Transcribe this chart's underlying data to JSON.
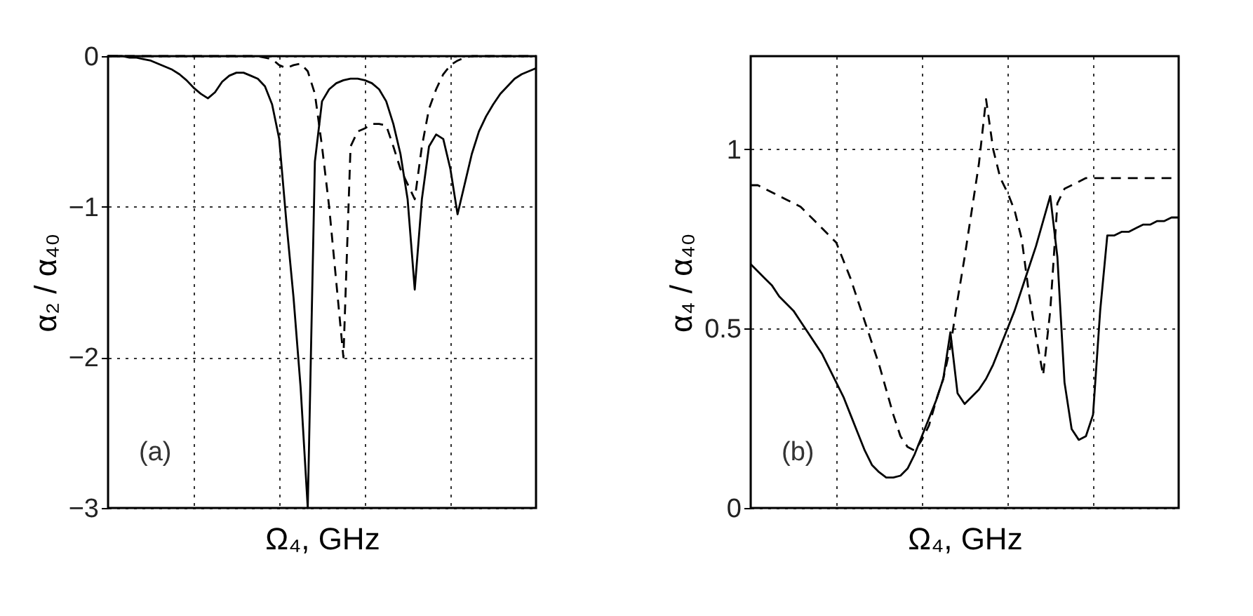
{
  "chart_data": [
    {
      "type": "line",
      "ylabel": "α₂ / α₄₀",
      "xlabel": "Ω₄, GHz",
      "categories": [
        null,
        null,
        null,
        null,
        null,
        null,
        null,
        null,
        null,
        null,
        null,
        null,
        null,
        null,
        null,
        null,
        null,
        null,
        null,
        null,
        null,
        null,
        null,
        null,
        null,
        null,
        null,
        null,
        null,
        null,
        null,
        null,
        null,
        null,
        null,
        null,
        null,
        null,
        null,
        null,
        null,
        null,
        null,
        null,
        null,
        null,
        null,
        null,
        null,
        null,
        null,
        null,
        null,
        null,
        null,
        null,
        null,
        null,
        null,
        null,
        null
      ],
      "ylim": [
        -3,
        0
      ],
      "yticks": [
        0,
        -1,
        -2,
        -3
      ],
      "grid": true,
      "tick_labels": "y",
      "annotations": [
        "(a)"
      ],
      "series": [
        {
          "color": "#000000",
          "line_style": "solid",
          "values": [
            0,
            0,
            0,
            -0.01,
            -0.01,
            -0.02,
            -0.03,
            -0.05,
            -0.07,
            -0.09,
            -0.12,
            -0.16,
            -0.21,
            -0.25,
            -0.28,
            -0.24,
            -0.17,
            -0.13,
            -0.11,
            -0.11,
            -0.13,
            -0.15,
            -0.2,
            -0.32,
            -0.55,
            -1.1,
            -1.6,
            -2.2,
            -3,
            -0.7,
            -0.3,
            -0.22,
            -0.18,
            -0.16,
            -0.15,
            -0.15,
            -0.16,
            -0.18,
            -0.22,
            -0.3,
            -0.45,
            -0.65,
            -0.95,
            -1.55,
            -0.95,
            -0.6,
            -0.52,
            -0.55,
            -0.75,
            -1.05,
            -0.85,
            -0.65,
            -0.5,
            -0.4,
            -0.32,
            -0.25,
            -0.2,
            -0.15,
            -0.12,
            -0.1,
            -0.08
          ]
        },
        {
          "color": "#000000",
          "line_style": "dashed",
          "values": [
            0,
            0,
            0,
            0,
            0,
            0,
            0,
            0,
            0,
            0,
            0,
            0,
            0,
            0,
            0,
            0,
            0,
            0,
            0,
            0,
            0,
            0,
            -0.01,
            -0.02,
            -0.06,
            -0.08,
            -0.06,
            -0.05,
            -0.1,
            -0.25,
            -0.6,
            -1.0,
            -1.5,
            -2.0,
            -0.6,
            -0.5,
            -0.48,
            -0.45,
            -0.45,
            -0.46,
            -0.6,
            -0.75,
            -0.85,
            -0.95,
            -0.6,
            -0.35,
            -0.22,
            -0.12,
            -0.06,
            -0.03,
            -0.01,
            0,
            0,
            0,
            0,
            0,
            0,
            0,
            0,
            0,
            0
          ]
        }
      ]
    },
    {
      "type": "line",
      "ylabel": "α₄ / α₄₀",
      "xlabel": "Ω₄, GHz",
      "categories": [
        null,
        null,
        null,
        null,
        null,
        null,
        null,
        null,
        null,
        null,
        null,
        null,
        null,
        null,
        null,
        null,
        null,
        null,
        null,
        null,
        null,
        null,
        null,
        null,
        null,
        null,
        null,
        null,
        null,
        null,
        null,
        null,
        null,
        null,
        null,
        null,
        null,
        null,
        null,
        null,
        null,
        null,
        null,
        null,
        null,
        null,
        null,
        null,
        null,
        null,
        null,
        null,
        null,
        null,
        null,
        null,
        null,
        null,
        null,
        null,
        null
      ],
      "ylim": [
        0,
        1.26
      ],
      "yticks": [
        0,
        0.5,
        1
      ],
      "grid": true,
      "tick_labels": "y",
      "annotations": [
        "(b)"
      ],
      "series": [
        {
          "color": "#000000",
          "line_style": "solid",
          "values": [
            0.68,
            0.66,
            0.64,
            0.62,
            0.59,
            0.57,
            0.55,
            0.52,
            0.49,
            0.46,
            0.43,
            0.39,
            0.35,
            0.31,
            0.26,
            0.21,
            0.16,
            0.12,
            0.1,
            0.085,
            0.085,
            0.09,
            0.11,
            0.15,
            0.2,
            0.25,
            0.3,
            0.36,
            0.49,
            0.32,
            0.29,
            0.31,
            0.33,
            0.36,
            0.4,
            0.45,
            0.5,
            0.55,
            0.61,
            0.67,
            0.73,
            0.8,
            0.87,
            0.7,
            0.35,
            0.22,
            0.19,
            0.2,
            0.26,
            0.55,
            0.76,
            0.76,
            0.77,
            0.77,
            0.78,
            0.79,
            0.79,
            0.8,
            0.8,
            0.81,
            0.81
          ]
        },
        {
          "color": "#000000",
          "line_style": "dashed",
          "values": [
            0.9,
            0.9,
            0.89,
            0.88,
            0.87,
            0.86,
            0.85,
            0.84,
            0.82,
            0.8,
            0.78,
            0.76,
            0.74,
            0.69,
            0.64,
            0.58,
            0.52,
            0.46,
            0.4,
            0.33,
            0.26,
            0.2,
            0.17,
            0.16,
            0.19,
            0.23,
            0.3,
            0.36,
            0.45,
            0.58,
            0.7,
            0.83,
            0.96,
            1.14,
            1.0,
            0.92,
            0.88,
            0.83,
            0.75,
            0.6,
            0.48,
            0.37,
            0.55,
            0.85,
            0.89,
            0.9,
            0.91,
            0.92,
            0.92,
            0.92,
            0.92,
            0.92,
            0.92,
            0.92,
            0.92,
            0.92,
            0.92,
            0.92,
            0.92,
            0.92,
            0.92
          ]
        }
      ]
    }
  ]
}
